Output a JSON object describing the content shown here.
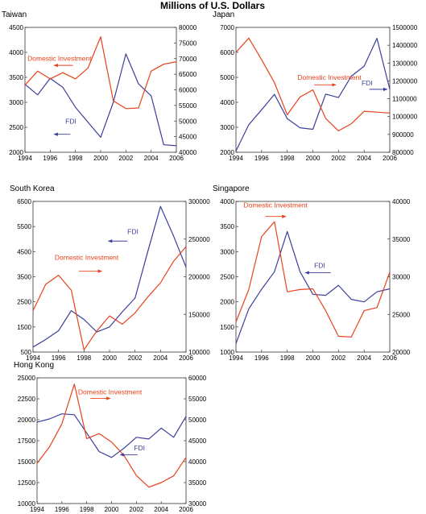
{
  "figure_title": "Millions of U.S. Dollars",
  "colors": {
    "domestic": "#e8421b",
    "fdi": "#3b3f9b",
    "frame": "#333333"
  },
  "chart_data": [
    {
      "type": "line",
      "title": "Taiwan",
      "x": [
        1994,
        1995,
        1996,
        1997,
        1998,
        1999,
        2000,
        2001,
        2002,
        2003,
        2004,
        2005,
        2006
      ],
      "xticks": [
        1994,
        1996,
        1998,
        2000,
        2002,
        2004,
        2006
      ],
      "xlim": [
        1994,
        2006
      ],
      "y_left_ticks": [
        2000,
        2500,
        3000,
        3500,
        4000,
        4500
      ],
      "y_left_ticks_text": [
        "2000",
        "2500",
        "3000",
        "3500",
        "4000",
        "4500"
      ],
      "y_left_lim": [
        2000,
        4500
      ],
      "y_right_ticks": [
        40000,
        45000,
        50000,
        55000,
        60000,
        65000,
        70000,
        75000,
        80000
      ],
      "y_right_ticks_text": [
        "40000",
        "45000",
        "50000",
        "55000",
        "60000",
        "65000",
        "70000",
        "75000",
        "80000"
      ],
      "y_right_lim": [
        40000,
        80000
      ],
      "series": [
        {
          "name": "FDI",
          "axis": "left",
          "color": "#3b3f9b",
          "values": [
            3360,
            3150,
            3480,
            3300,
            2900,
            2600,
            2300,
            3000,
            3970,
            3370,
            3130,
            2150,
            2130
          ]
        },
        {
          "name": "Domestic Investment",
          "axis": "right",
          "color": "#e8421b",
          "values": [
            61500,
            66000,
            63500,
            65500,
            63500,
            67000,
            77000,
            56500,
            54000,
            54200,
            66000,
            68200,
            69000
          ]
        }
      ],
      "annotations": [
        {
          "text": "Domestic Investment",
          "series": "Domestic Investment",
          "x": 1994.2,
          "y": 3830,
          "arrow": [
            1997.8,
            3740,
            1996.3,
            3740
          ]
        },
        {
          "text": "FDI",
          "series": "FDI",
          "x": 1997.2,
          "y": 2570,
          "arrow": [
            1997.6,
            2360,
            1996.3,
            2360
          ]
        }
      ]
    },
    {
      "type": "line",
      "title": "Japan",
      "x": [
        1994,
        1995,
        1996,
        1997,
        1998,
        1999,
        2000,
        2001,
        2002,
        2003,
        2004,
        2005,
        2006
      ],
      "xticks": [
        1994,
        1996,
        1998,
        2000,
        2002,
        2004,
        2006
      ],
      "xlim": [
        1994,
        2006
      ],
      "y_left_ticks": [
        2000,
        3000,
        4000,
        5000,
        6000,
        7000
      ],
      "y_left_ticks_text": [
        "2000",
        "3000",
        "4000",
        "5000",
        "6000",
        "7000"
      ],
      "y_left_lim": [
        2000,
        7000
      ],
      "y_right_ticks": [
        800000,
        900000,
        1000000,
        1100000,
        1200000,
        1300000,
        1400000,
        1500000
      ],
      "y_right_ticks_text": [
        "800000",
        "900000",
        "1000000",
        "1100000",
        "1200000",
        "1300000",
        "1400000",
        "1500000"
      ],
      "y_right_lim": [
        800000,
        1500000
      ],
      "series": [
        {
          "name": "FDI",
          "axis": "left",
          "color": "#3b3f9b",
          "values": [
            2050,
            3100,
            3700,
            4320,
            3350,
            2980,
            2920,
            4330,
            4190,
            5050,
            5450,
            6560,
            4520
          ]
        },
        {
          "name": "Domestic Investment",
          "axis": "right",
          "color": "#e8421b",
          "values": [
            1360000,
            1440000,
            1320000,
            1190000,
            1010000,
            1110000,
            1150000,
            990000,
            920000,
            960000,
            1030000,
            1025000,
            1020000
          ]
        }
      ],
      "annotations": [
        {
          "text": "Domestic Investment",
          "series": "Domestic Investment",
          "x": 1998.8,
          "y": 4900,
          "arrow": [
            2000.1,
            4700,
            2001.8,
            4700
          ]
        },
        {
          "text": "FDI",
          "series": "FDI",
          "x": 2003.8,
          "y": 4680,
          "arrow": [
            2004.4,
            4520,
            2005.8,
            4520
          ]
        }
      ]
    },
    {
      "type": "line",
      "title": "South Korea",
      "x": [
        1994,
        1995,
        1996,
        1997,
        1998,
        1999,
        2000,
        2001,
        2002,
        2003,
        2004,
        2005,
        2006
      ],
      "xticks": [
        1994,
        1996,
        1998,
        2000,
        2002,
        2004,
        2006
      ],
      "xlim": [
        1994,
        2006
      ],
      "y_left_ticks": [
        500,
        1500,
        2500,
        3500,
        4500,
        5500,
        6500
      ],
      "y_left_ticks_text": [
        "500",
        "1500",
        "2500",
        "3500",
        "4500",
        "5500",
        "6500"
      ],
      "y_left_lim": [
        500,
        6500
      ],
      "y_right_ticks": [
        100000,
        150000,
        200000,
        250000,
        300000
      ],
      "y_right_ticks_text": [
        "100000",
        "150000",
        "200000",
        "250000",
        "300000"
      ],
      "y_right_lim": [
        100000,
        300000
      ],
      "series": [
        {
          "name": "FDI",
          "axis": "left",
          "color": "#3b3f9b",
          "values": [
            700,
            1000,
            1350,
            2150,
            1800,
            1300,
            1500,
            2100,
            2650,
            4500,
            6300,
            5150,
            3880
          ]
        },
        {
          "name": "Domestic Investment",
          "axis": "right",
          "color": "#e8421b",
          "values": [
            155000,
            190000,
            202000,
            182000,
            103000,
            128000,
            148000,
            137000,
            152000,
            173000,
            192000,
            220000,
            240000
          ]
        }
      ],
      "annotations": [
        {
          "text": "Domestic Investment",
          "series": "Domestic Investment",
          "x": 1995.7,
          "y": 4180,
          "arrow": [
            1997.6,
            3720,
            1999.4,
            3720
          ]
        },
        {
          "text": "FDI",
          "series": "FDI",
          "x": 2001.4,
          "y": 5200,
          "arrow": [
            2001.4,
            4920,
            1999.9,
            4920
          ]
        }
      ]
    },
    {
      "type": "line",
      "title": "Singapore",
      "x": [
        1994,
        1995,
        1996,
        1997,
        1998,
        1999,
        2000,
        2001,
        2002,
        2003,
        2004,
        2005,
        2006
      ],
      "xticks": [
        1994,
        1996,
        1998,
        2000,
        2002,
        2004,
        2006
      ],
      "xlim": [
        1994,
        2006
      ],
      "y_left_ticks": [
        1000,
        1500,
        2000,
        2500,
        3000,
        3500,
        4000
      ],
      "y_left_ticks_text": [
        "1000",
        "1500",
        "2000",
        "2500",
        "3000",
        "3500",
        "4000"
      ],
      "y_left_lim": [
        1000,
        4000
      ],
      "y_right_ticks": [
        20000,
        25000,
        30000,
        35000,
        40000
      ],
      "y_right_ticks_text": [
        "20000",
        "25000",
        "30000",
        "35000",
        "40000"
      ],
      "y_right_lim": [
        20000,
        40000
      ],
      "series": [
        {
          "name": "FDI",
          "axis": "left",
          "color": "#3b3f9b",
          "values": [
            1170,
            1860,
            2250,
            2600,
            3400,
            2600,
            2150,
            2130,
            2330,
            2050,
            2000,
            2200,
            2260
          ]
        },
        {
          "name": "Domestic Investment",
          "axis": "right",
          "color": "#e8421b",
          "values": [
            24000,
            28300,
            35300,
            37300,
            28000,
            28300,
            28400,
            25500,
            22100,
            22000,
            25500,
            25900,
            30600
          ]
        }
      ],
      "annotations": [
        {
          "text": "Domestic Investment",
          "series": "Domestic Investment",
          "x": 1994.6,
          "y": 3880,
          "arrow": [
            1996.3,
            3700,
            1997.9,
            3700
          ]
        },
        {
          "text": "FDI",
          "series": "FDI",
          "x": 2000.1,
          "y": 2680,
          "arrow": [
            2001.4,
            2580,
            1999.4,
            2580
          ]
        }
      ]
    },
    {
      "type": "line",
      "title": "Hong Kong",
      "x": [
        1994,
        1995,
        1996,
        1997,
        1998,
        1999,
        2000,
        2001,
        2002,
        2003,
        2004,
        2005,
        2006
      ],
      "xticks": [
        1994,
        1996,
        1998,
        2000,
        2002,
        2004,
        2006
      ],
      "xlim": [
        1994,
        2006
      ],
      "y_left_ticks": [
        10000,
        12500,
        15000,
        17500,
        20000,
        22500,
        25000
      ],
      "y_left_ticks_text": [
        "10000",
        "12500",
        "15000",
        "17500",
        "20000",
        "22500",
        "25000"
      ],
      "y_left_lim": [
        10000,
        25000
      ],
      "y_right_ticks": [
        30000,
        35000,
        40000,
        45000,
        50000,
        55000,
        60000
      ],
      "y_right_ticks_text": [
        "30000",
        "35000",
        "40000",
        "45000",
        "50000",
        "55000",
        "60000"
      ],
      "y_right_lim": [
        30000,
        60000
      ],
      "series": [
        {
          "name": "FDI",
          "axis": "left",
          "color": "#3b3f9b",
          "values": [
            19700,
            20100,
            20700,
            20600,
            18400,
            16200,
            15500,
            16600,
            17900,
            17700,
            19000,
            17900,
            20400
          ]
        },
        {
          "name": "Domestic Investment",
          "axis": "right",
          "color": "#e8421b",
          "values": [
            39600,
            43500,
            49000,
            58500,
            45500,
            46700,
            44700,
            41500,
            36700,
            33900,
            35000,
            36600,
            41000
          ]
        }
      ],
      "annotations": [
        {
          "text": "Domestic Investment",
          "series": "Domestic Investment",
          "x": 1997.3,
          "y": 23030,
          "arrow": [
            1998.3,
            22550,
            1999.9,
            22550
          ]
        },
        {
          "text": "FDI",
          "series": "FDI",
          "x": 2001.8,
          "y": 16330,
          "arrow": [
            2002.1,
            15820,
            2000.7,
            15820
          ]
        }
      ]
    }
  ]
}
